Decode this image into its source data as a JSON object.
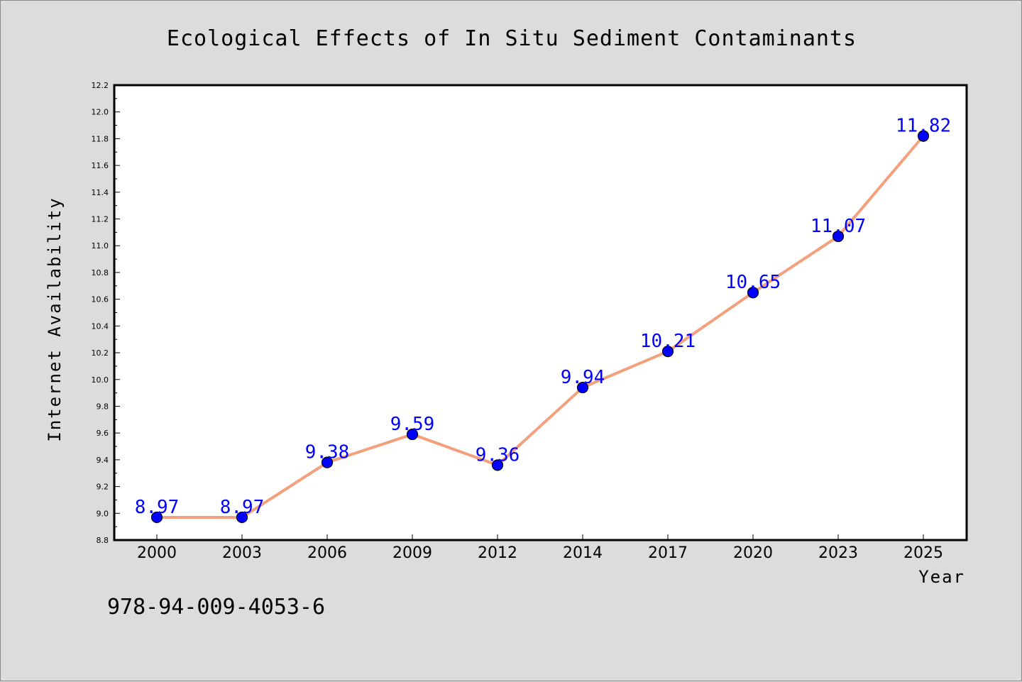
{
  "chart_data": {
    "type": "line",
    "title": "Ecological Effects of In Situ Sediment Contaminants",
    "xlabel": "Year",
    "ylabel": "Internet Availability",
    "categories": [
      "2000",
      "2003",
      "2006",
      "2009",
      "2012",
      "2014",
      "2017",
      "2020",
      "2023",
      "2025"
    ],
    "series": [
      {
        "values": [
          8.97,
          8.97,
          9.38,
          9.59,
          9.36,
          9.94,
          10.21,
          10.65,
          11.07,
          11.82
        ]
      }
    ],
    "data_labels": [
      "8.97",
      "8.97",
      "9.38",
      "9.59",
      "9.36",
      "9.94",
      "10.21",
      "10.65",
      "11.07",
      "11.82"
    ],
    "ylim": [
      8.8,
      12.2
    ],
    "yticks": [
      "8.8",
      "9.0",
      "9.2",
      "9.4",
      "9.6",
      "9.8",
      "10.0",
      "10.2",
      "10.4",
      "10.6",
      "10.8",
      "11.0",
      "11.2",
      "11.4",
      "11.6",
      "11.8",
      "12.0",
      "12.2"
    ],
    "grid": false,
    "legend": "none",
    "colors": {
      "line": "#f4a07c",
      "marker": "#0000ff",
      "data_label": "#0000ff",
      "plot_bg": "#ffffff",
      "figure_bg": "#dcdcdc"
    }
  },
  "footer": {
    "isbn": "978-94-009-4053-6"
  }
}
